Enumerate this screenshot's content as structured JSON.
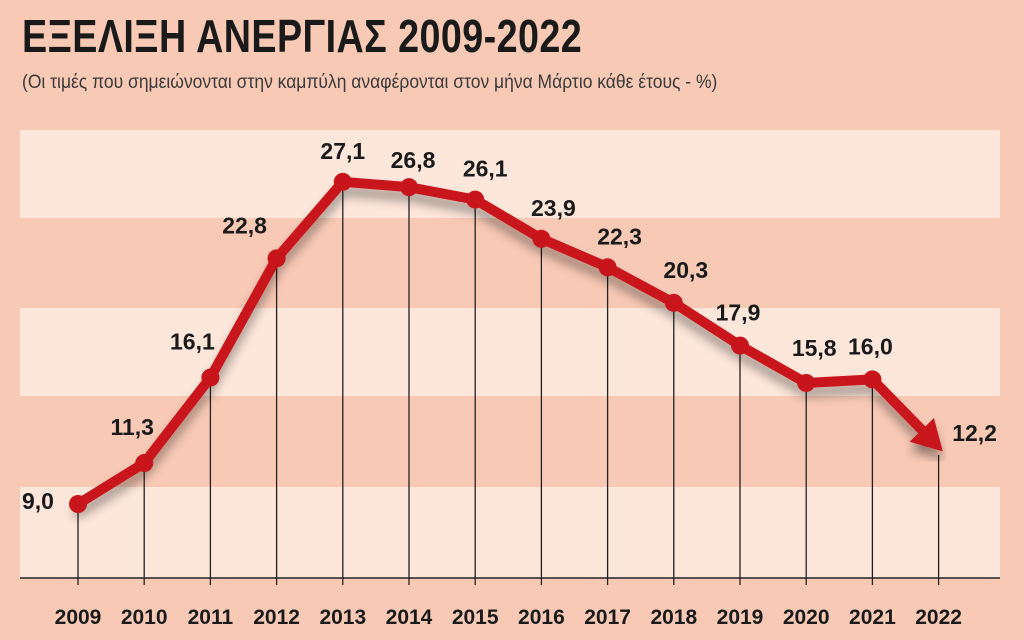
{
  "title": "ΕΞΕΛΙΞΗ ΑΝΕΡΓΙΑΣ 2009-2022",
  "subtitle": "(Οι τιμές που σημειώνονται στην καμπύλη αναφέρονται στον μήνα Μάρτιο κάθε έτους - %)",
  "colors": {
    "background": "#f8c9b5",
    "band_light": "#fde6da",
    "line": "#c8151b",
    "text": "#1a1a1a"
  },
  "chart_data": {
    "type": "line",
    "title": "ΕΞΕΛΙΞΗ ΑΝΕΡΓΙΑΣ 2009-2022",
    "subtitle": "(Οι τιμές που σημειώνονται στην καμπύλη αναφέρονται στον μήνα Μάρτιο κάθε έτους - %)",
    "categories": [
      "2009",
      "2010",
      "2011",
      "2012",
      "2013",
      "2014",
      "2015",
      "2016",
      "2017",
      "2018",
      "2019",
      "2020",
      "2021",
      "2022"
    ],
    "values": [
      9.0,
      11.3,
      16.1,
      22.8,
      27.1,
      26.8,
      26.1,
      23.9,
      22.3,
      20.3,
      17.9,
      15.8,
      16.0,
      12.2
    ],
    "value_labels": [
      "9,0",
      "11,3",
      "16,1",
      "22,8",
      "27,1",
      "26,8",
      "26,1",
      "23,9",
      "22,3",
      "20,3",
      "17,9",
      "15,8",
      "16,0",
      "12,2"
    ],
    "xlabel": "",
    "ylabel": "",
    "grid": false,
    "legend": "none",
    "last_point_marker": "arrow"
  }
}
